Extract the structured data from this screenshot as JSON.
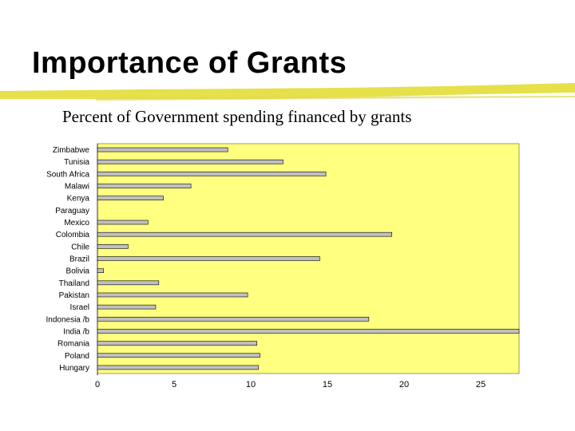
{
  "slide": {
    "title": "Importance of Grants",
    "subtitle": "Percent of Government spending financed by grants"
  },
  "colors": {
    "plot_background": "#ffff80",
    "bar_fill": "#c0c0c0",
    "bar_stroke": "#000000",
    "underline": "#e6e04a"
  },
  "chart_data": {
    "type": "bar",
    "orientation": "horizontal",
    "categories": [
      "Zimbabwe",
      "Tunisia",
      "South Africa",
      "Malawi",
      "Kenya",
      "Paraguay",
      "Mexico",
      "Colombia",
      "Chile",
      "Brazil",
      "Bolivia",
      "Thailand",
      "Pakistan",
      "Israel",
      "Indonesia /b",
      "India /b",
      "Romania",
      "Poland",
      "Hungary"
    ],
    "values": [
      8.5,
      12.1,
      14.9,
      6.1,
      4.3,
      0,
      3.3,
      19.2,
      2.0,
      14.5,
      0.4,
      4.0,
      9.8,
      3.8,
      17.7,
      27.5,
      10.4,
      10.6,
      10.5
    ],
    "xlim": [
      0,
      27.5
    ],
    "xticks": [
      "0",
      "5",
      "10",
      "15",
      "20",
      "25"
    ],
    "title": "",
    "xlabel": "",
    "ylabel": "",
    "grid": false,
    "legend": "none"
  }
}
